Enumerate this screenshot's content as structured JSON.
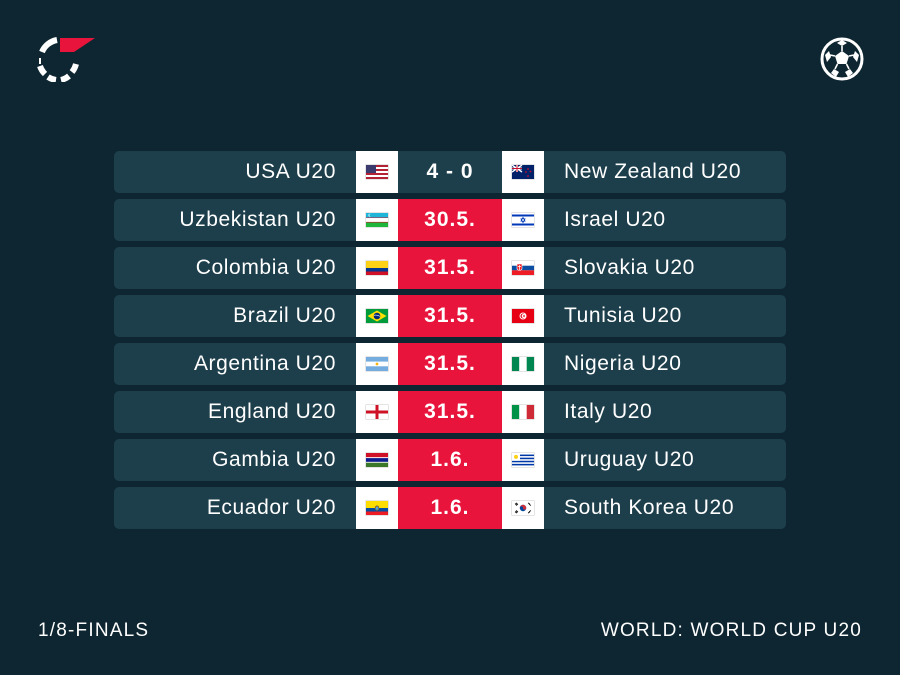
{
  "brand": {
    "logo_icon": "flashscore-logo-icon",
    "sport_icon": "soccer-ball-icon",
    "accent_color": "#e8143c",
    "background_color": "#0e2631",
    "row_color": "#1d3e4b"
  },
  "matches": [
    {
      "home": "USA U20",
      "home_flag": "flag-usa-icon",
      "score": "4 - 0",
      "played": true,
      "away": "New Zealand U20",
      "away_flag": "flag-new-zealand-icon"
    },
    {
      "home": "Uzbekistan U20",
      "home_flag": "flag-uzbekistan-icon",
      "score": "30.5.",
      "played": false,
      "away": "Israel U20",
      "away_flag": "flag-israel-icon"
    },
    {
      "home": "Colombia U20",
      "home_flag": "flag-colombia-icon",
      "score": "31.5.",
      "played": false,
      "away": "Slovakia U20",
      "away_flag": "flag-slovakia-icon"
    },
    {
      "home": "Brazil U20",
      "home_flag": "flag-brazil-icon",
      "score": "31.5.",
      "played": false,
      "away": "Tunisia U20",
      "away_flag": "flag-tunisia-icon"
    },
    {
      "home": "Argentina U20",
      "home_flag": "flag-argentina-icon",
      "score": "31.5.",
      "played": false,
      "away": "Nigeria U20",
      "away_flag": "flag-nigeria-icon"
    },
    {
      "home": "England U20",
      "home_flag": "flag-england-icon",
      "score": "31.5.",
      "played": false,
      "away": "Italy U20",
      "away_flag": "flag-italy-icon"
    },
    {
      "home": "Gambia U20",
      "home_flag": "flag-gambia-icon",
      "score": "1.6.",
      "played": false,
      "away": "Uruguay U20",
      "away_flag": "flag-uruguay-icon"
    },
    {
      "home": "Ecuador U20",
      "home_flag": "flag-ecuador-icon",
      "score": "1.6.",
      "played": false,
      "away": "South Korea U20",
      "away_flag": "flag-south-korea-icon"
    }
  ],
  "footer": {
    "stage": "1/8-FINALS",
    "competition": "WORLD: WORLD CUP U20"
  }
}
